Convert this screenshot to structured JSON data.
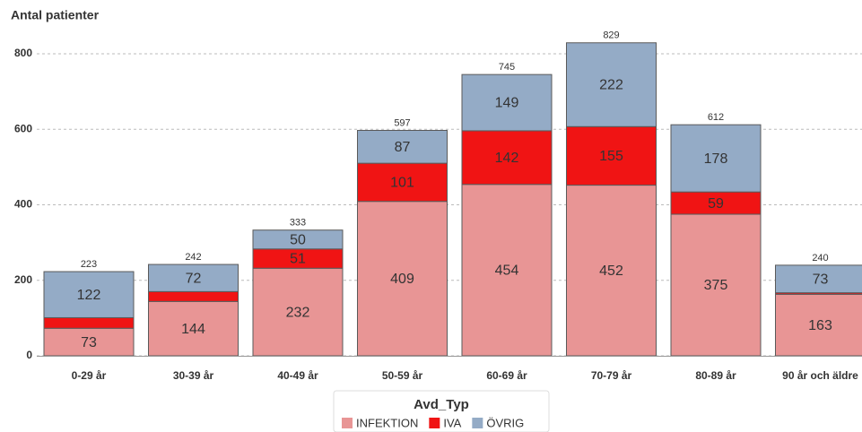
{
  "chart_data": {
    "type": "stacked_bar",
    "y_axis_title": "Antal patienter",
    "categories": [
      "0-29 år",
      "30-39 år",
      "40-49 år",
      "50-59 år",
      "60-69 år",
      "70-79 år",
      "80-89 år",
      "90 år och äldre"
    ],
    "series": [
      {
        "name": "INFEKTION",
        "color": "#e89595",
        "label_color": "#333333",
        "values": [
          73,
          144,
          232,
          409,
          454,
          452,
          375,
          163
        ],
        "value_labels": [
          "73",
          "144",
          "232",
          "409",
          "454",
          "452",
          "375",
          "163"
        ]
      },
      {
        "name": "IVA",
        "color": "#f01414",
        "label_color": "#ffffff",
        "values": [
          28,
          26,
          51,
          101,
          142,
          155,
          59,
          4
        ],
        "value_labels": [
          null,
          null,
          "51",
          "101",
          "142",
          "155",
          "59",
          null
        ]
      },
      {
        "name": "ÖVRIG",
        "color": "#94abc6",
        "label_color": "#333333",
        "values": [
          122,
          72,
          50,
          87,
          149,
          222,
          178,
          73
        ],
        "value_labels": [
          "122",
          "72",
          "50",
          "87",
          "149",
          "222",
          "178",
          "73"
        ]
      }
    ],
    "total_labels": [
      "223",
      "242",
      "333",
      "597",
      "745",
      "829",
      "612",
      "240"
    ],
    "legend_title": "Avd_Typ",
    "ylim": [
      0,
      850
    ],
    "yticks": [
      0,
      200,
      400,
      600,
      800
    ],
    "grid": true
  }
}
